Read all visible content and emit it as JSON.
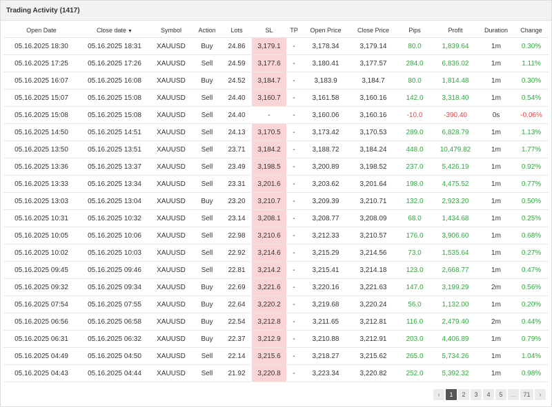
{
  "panel": {
    "title": "Trading Activity",
    "count": "(1417)"
  },
  "columns": [
    "Open Date",
    "Close date",
    "Symbol",
    "Action",
    "Lots",
    "SL",
    "TP",
    "Open Price",
    "Close Price",
    "Pips",
    "Profit",
    "Duration",
    "Change"
  ],
  "sort_indicator": "▼",
  "rows": [
    [
      "05.16.2025 18:30",
      "05.16.2025 18:31",
      "XAUUSD",
      "Buy",
      "24.86",
      "3,179.1",
      "-",
      "3,178.34",
      "3,179.14",
      "80.0",
      "1,839.64",
      "1m",
      "0.30%"
    ],
    [
      "05.16.2025 17:25",
      "05.16.2025 17:26",
      "XAUUSD",
      "Sell",
      "24.59",
      "3,177.6",
      "-",
      "3,180.41",
      "3,177.57",
      "284.0",
      "6,836.02",
      "1m",
      "1.11%"
    ],
    [
      "05.16.2025 16:07",
      "05.16.2025 16:08",
      "XAUUSD",
      "Buy",
      "24.52",
      "3,184.7",
      "-",
      "3,183.9",
      "3,184.7",
      "80.0",
      "1,814.48",
      "1m",
      "0.30%"
    ],
    [
      "05.16.2025 15:07",
      "05.16.2025 15:08",
      "XAUUSD",
      "Sell",
      "24.40",
      "3,160.7",
      "-",
      "3,161.58",
      "3,160.16",
      "142.0",
      "3,318.40",
      "1m",
      "0.54%"
    ],
    [
      "05.16.2025 15:08",
      "05.16.2025 15:08",
      "XAUUSD",
      "Sell",
      "24.40",
      "-",
      "-",
      "3,160.06",
      "3,160.16",
      "-10.0",
      "-390.40",
      "0s",
      "-0.06%"
    ],
    [
      "05.16.2025 14:50",
      "05.16.2025 14:51",
      "XAUUSD",
      "Sell",
      "24.13",
      "3,170.5",
      "-",
      "3,173.42",
      "3,170.53",
      "289.0",
      "6,828.79",
      "1m",
      "1.13%"
    ],
    [
      "05.16.2025 13:50",
      "05.16.2025 13:51",
      "XAUUSD",
      "Sell",
      "23.71",
      "3,184.2",
      "-",
      "3,188.72",
      "3,184.24",
      "448.0",
      "10,479.82",
      "1m",
      "1.77%"
    ],
    [
      "05.16.2025 13:36",
      "05.16.2025 13:37",
      "XAUUSD",
      "Sell",
      "23.49",
      "3,198.5",
      "-",
      "3,200.89",
      "3,198.52",
      "237.0",
      "5,426.19",
      "1m",
      "0.92%"
    ],
    [
      "05.16.2025 13:33",
      "05.16.2025 13:34",
      "XAUUSD",
      "Sell",
      "23.31",
      "3,201.6",
      "-",
      "3,203.62",
      "3,201.64",
      "198.0",
      "4,475.52",
      "1m",
      "0.77%"
    ],
    [
      "05.16.2025 13:03",
      "05.16.2025 13:04",
      "XAUUSD",
      "Buy",
      "23.20",
      "3,210.7",
      "-",
      "3,209.39",
      "3,210.71",
      "132.0",
      "2,923.20",
      "1m",
      "0.50%"
    ],
    [
      "05.16.2025 10:31",
      "05.16.2025 10:32",
      "XAUUSD",
      "Sell",
      "23.14",
      "3,208.1",
      "-",
      "3,208.77",
      "3,208.09",
      "68.0",
      "1,434.68",
      "1m",
      "0.25%"
    ],
    [
      "05.16.2025 10:05",
      "05.16.2025 10:06",
      "XAUUSD",
      "Sell",
      "22.98",
      "3,210.6",
      "-",
      "3,212.33",
      "3,210.57",
      "176.0",
      "3,906.60",
      "1m",
      "0.68%"
    ],
    [
      "05.16.2025 10:02",
      "05.16.2025 10:03",
      "XAUUSD",
      "Sell",
      "22.92",
      "3,214.6",
      "-",
      "3,215.29",
      "3,214.56",
      "73.0",
      "1,535.64",
      "1m",
      "0.27%"
    ],
    [
      "05.16.2025 09:45",
      "05.16.2025 09:46",
      "XAUUSD",
      "Sell",
      "22.81",
      "3,214.2",
      "-",
      "3,215.41",
      "3,214.18",
      "123.0",
      "2,668.77",
      "1m",
      "0.47%"
    ],
    [
      "05.16.2025 09:32",
      "05.16.2025 09:34",
      "XAUUSD",
      "Buy",
      "22.69",
      "3,221.6",
      "-",
      "3,220.16",
      "3,221.63",
      "147.0",
      "3,199.29",
      "2m",
      "0.56%"
    ],
    [
      "05.16.2025 07:54",
      "05.16.2025 07:55",
      "XAUUSD",
      "Buy",
      "22.64",
      "3,220.2",
      "-",
      "3,219.68",
      "3,220.24",
      "56.0",
      "1,132.00",
      "1m",
      "0.20%"
    ],
    [
      "05.16.2025 06:56",
      "05.16.2025 06:58",
      "XAUUSD",
      "Buy",
      "22.54",
      "3,212.8",
      "-",
      "3,211.65",
      "3,212.81",
      "116.0",
      "2,479.40",
      "2m",
      "0.44%"
    ],
    [
      "05.16.2025 06:31",
      "05.16.2025 06:32",
      "XAUUSD",
      "Buy",
      "22.37",
      "3,212.9",
      "-",
      "3,210.88",
      "3,212.91",
      "203.0",
      "4,406.89",
      "1m",
      "0.79%"
    ],
    [
      "05.16.2025 04:49",
      "05.16.2025 04:50",
      "XAUUSD",
      "Sell",
      "22.14",
      "3,215.6",
      "-",
      "3,218.27",
      "3,215.62",
      "265.0",
      "5,734.26",
      "1m",
      "1.04%"
    ],
    [
      "05.16.2025 04:43",
      "05.16.2025 04:44",
      "XAUUSD",
      "Sell",
      "21.92",
      "3,220.8",
      "-",
      "3,223.34",
      "3,220.82",
      "252.0",
      "5,392.32",
      "1m",
      "0.98%"
    ]
  ],
  "colors": {
    "positive": "#2eaa3c",
    "negative": "#e04848",
    "sl_highlight": "#fbd5d5",
    "header_bg": "#f2f2f2"
  },
  "pagination": {
    "prev_icon": "chevron-left-icon",
    "prev_glyph": "‹",
    "pages": [
      "1",
      "2",
      "3",
      "4",
      "5"
    ],
    "active_page": "1",
    "ellipsis": "...",
    "last_page": "71",
    "next_icon": "chevron-right-icon",
    "next_glyph": "›"
  }
}
